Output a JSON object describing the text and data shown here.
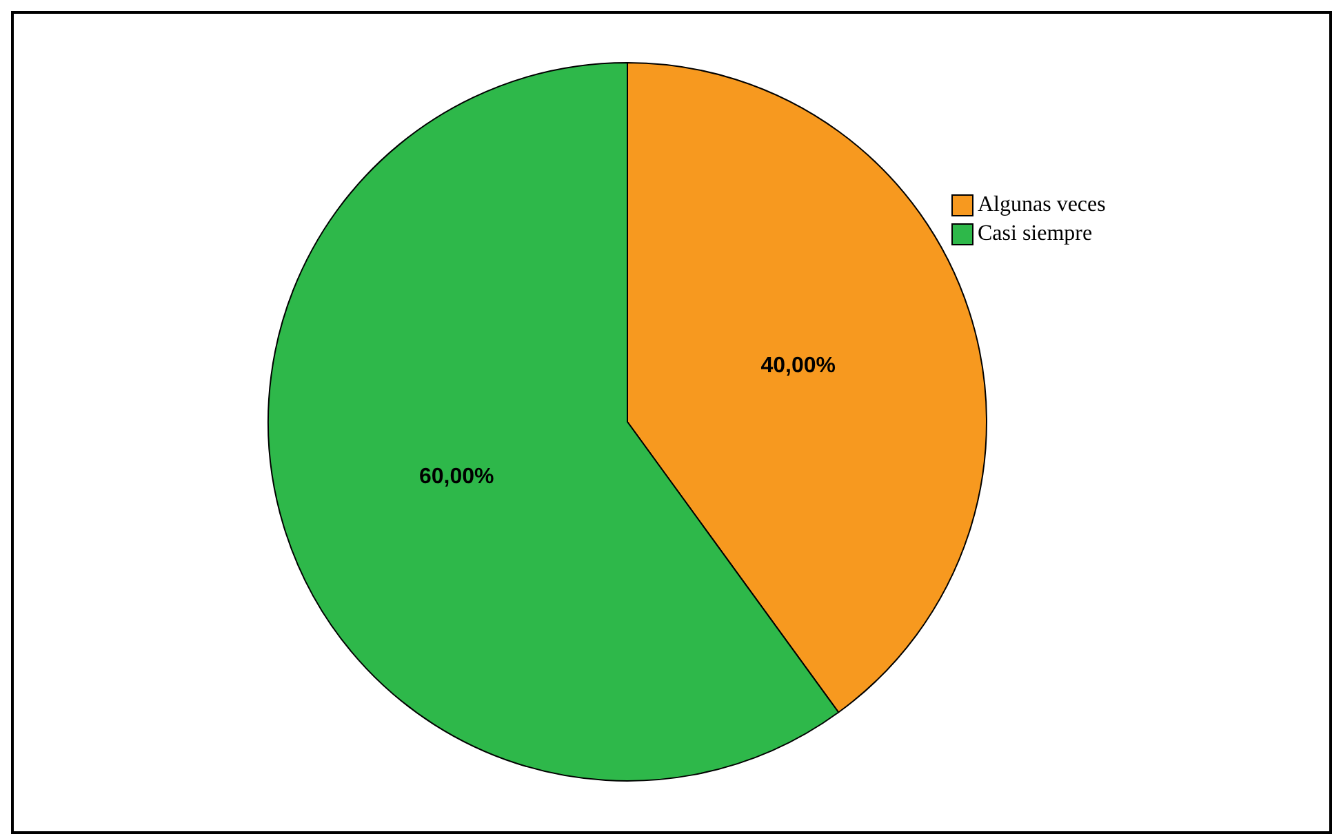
{
  "chart_data": {
    "type": "pie",
    "categories": [
      "Algunas veces",
      "Casi siempre"
    ],
    "values": [
      40,
      60
    ],
    "colors": [
      "#f7991f",
      "#2eb84a"
    ],
    "value_labels": [
      "40,00%",
      "60,00%"
    ],
    "legend": "top right"
  }
}
